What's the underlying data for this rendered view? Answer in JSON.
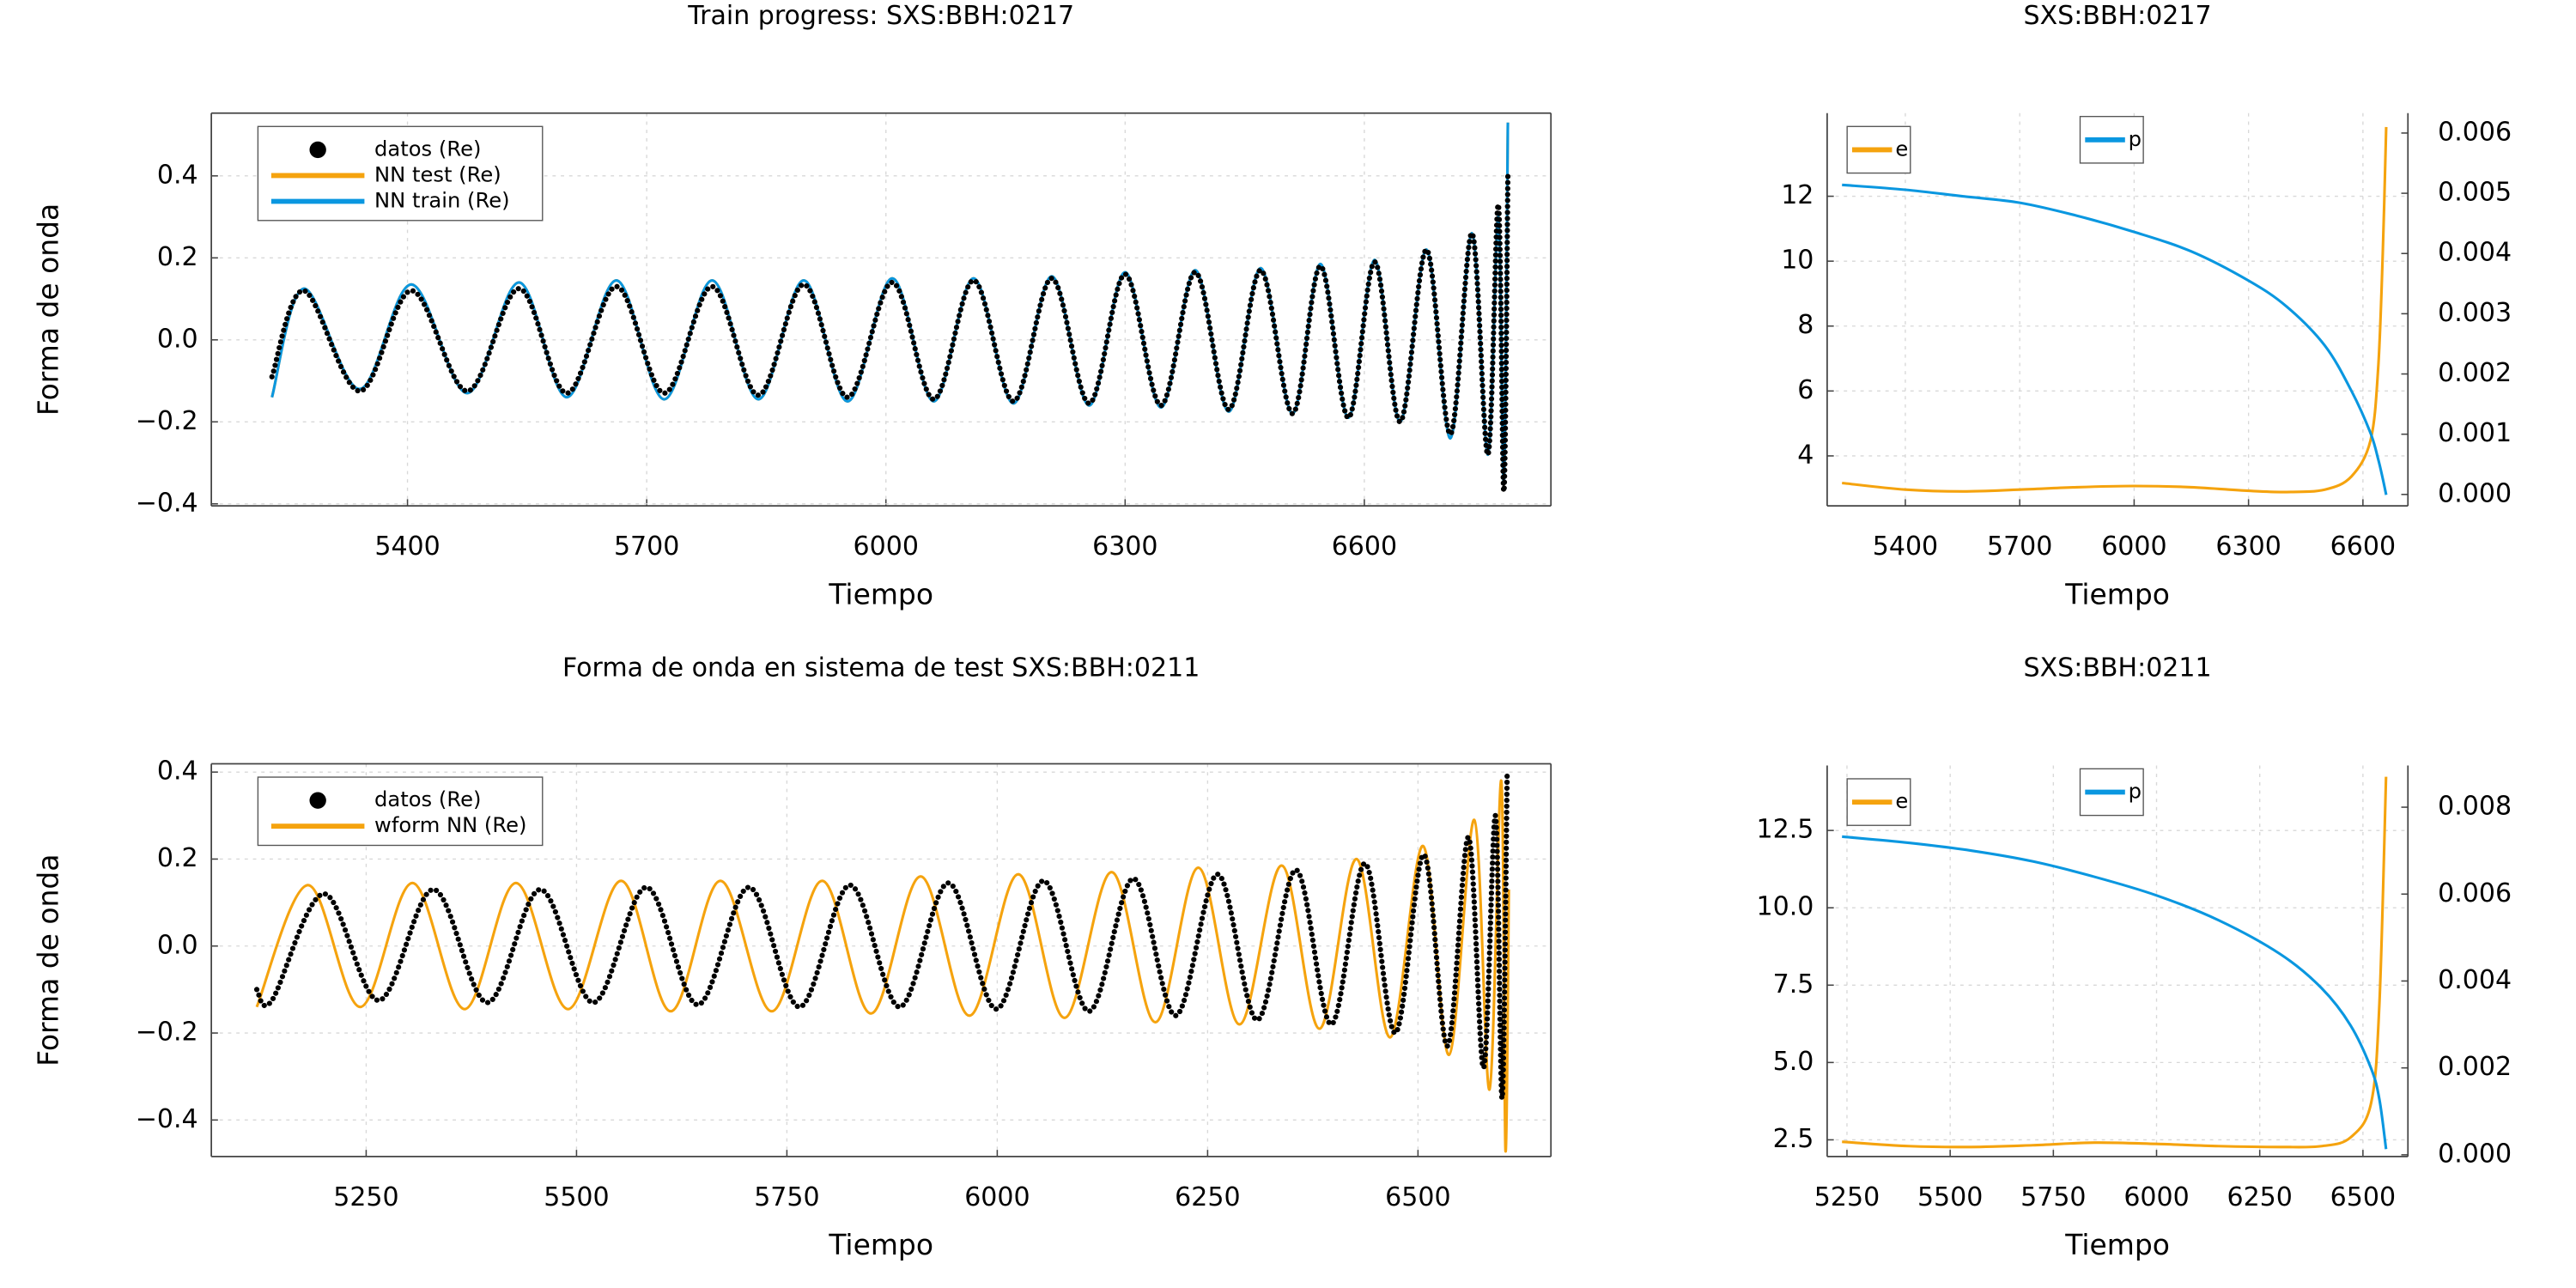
{
  "chart_data": [
    {
      "type": "line",
      "title": "Train progress: SXS:BBH:0217",
      "xlabel": "Tiempo",
      "ylabel": "Forma de onda",
      "x": [
        5230,
        5270,
        5340,
        5405,
        5475,
        5540,
        5600,
        5662,
        5722,
        5782,
        5840,
        5897,
        5952,
        6008,
        6060,
        6110,
        6160,
        6208,
        6255,
        6300,
        6345,
        6388,
        6430,
        6470,
        6510,
        6545,
        6580,
        6613,
        6645,
        6678,
        6708,
        6735,
        6755,
        6768,
        6775,
        6780
      ],
      "series": [
        {
          "name": "datos (Re)",
          "color": "#000000",
          "marker": "circle",
          "values": [
            -0.09,
            0.12,
            -0.125,
            0.12,
            -0.125,
            0.125,
            -0.13,
            0.13,
            -0.13,
            0.13,
            -0.135,
            0.135,
            -0.14,
            0.14,
            -0.145,
            0.145,
            -0.15,
            0.15,
            -0.155,
            0.16,
            -0.16,
            0.165,
            -0.17,
            0.17,
            -0.18,
            0.18,
            -0.19,
            0.19,
            -0.2,
            0.22,
            -0.23,
            0.26,
            -0.28,
            0.33,
            -0.37,
            0.4
          ]
        },
        {
          "name": "NN test (Re)",
          "color": "#f5a30e",
          "values": [
            -0.14,
            0.125,
            -0.12,
            0.135,
            -0.13,
            0.14,
            -0.14,
            0.145,
            -0.145,
            0.145,
            -0.145,
            0.145,
            -0.15,
            0.15,
            -0.15,
            0.15,
            -0.155,
            0.155,
            -0.16,
            0.165,
            -0.165,
            0.17,
            -0.175,
            0.175,
            -0.18,
            0.185,
            -0.19,
            0.195,
            -0.2,
            0.22,
            -0.24,
            0.26,
            -0.28,
            0.3,
            -0.35,
            0.53
          ]
        },
        {
          "name": "NN train (Re)",
          "color": "#0a97e0",
          "values": [
            -0.14,
            0.125,
            -0.12,
            0.135,
            -0.13,
            0.14,
            -0.14,
            0.145,
            -0.145,
            0.145,
            -0.145,
            0.145,
            -0.15,
            0.15,
            -0.15,
            0.15,
            -0.155,
            0.155,
            -0.16,
            0.165,
            -0.165,
            0.17,
            -0.175,
            0.175,
            -0.18,
            0.185,
            -0.19,
            0.195,
            -0.2,
            0.22,
            -0.24,
            0.26,
            -0.28,
            0.3,
            -0.35,
            0.53
          ]
        }
      ],
      "xlim": [
        5154,
        6834
      ],
      "xticks": [
        5400,
        5700,
        6000,
        6300,
        6600
      ],
      "ylim": [
        -0.405,
        0.553
      ],
      "yticks": [
        {
          "value": -0.4,
          "label": "−0.4"
        },
        {
          "value": -0.2,
          "label": "−0.2"
        },
        {
          "value": 0,
          "label": "0.0"
        },
        0.2,
        0.4
      ],
      "grid": true,
      "legend": "top-left"
    },
    {
      "type": "line",
      "title": "SXS:BBH:0217",
      "xlabel": "Tiempo",
      "x": [
        5234,
        5400,
        5550,
        5700,
        5850,
        6000,
        6150,
        6300,
        6400,
        6500,
        6570,
        6620,
        6640,
        6652,
        6661
      ],
      "series": [
        {
          "name": "e",
          "color": "#f5a30e",
          "axis": "y2",
          "legend": "top-left",
          "values": [
            0.00019,
            8e-05,
            5e-05,
            8e-05,
            0.00012,
            0.00014,
            0.00012,
            6e-05,
            4e-05,
            8e-05,
            0.0003,
            0.0009,
            0.0021,
            0.004,
            0.0061
          ]
        },
        {
          "name": "p",
          "color": "#0a97e0",
          "legend": "top",
          "values": [
            12.35,
            12.2,
            12.0,
            11.8,
            11.4,
            10.9,
            10.3,
            9.4,
            8.6,
            7.4,
            6.0,
            4.7,
            3.9,
            3.3,
            2.8
          ]
        }
      ],
      "xlim": [
        5195,
        6718
      ],
      "xticks": [
        5400,
        5700,
        6000,
        6300,
        6600
      ],
      "ylim": [
        2.46,
        14.56
      ],
      "yticks": [
        4,
        6,
        8,
        10,
        12
      ],
      "y2lim": [
        -0.00019,
        0.00633
      ],
      "y2ticks": [
        {
          "value": 0,
          "label": "0.000"
        },
        {
          "value": 0.001,
          "label": "0.001"
        },
        {
          "value": 0.002,
          "label": "0.002"
        },
        {
          "value": 0.003,
          "label": "0.003"
        },
        {
          "value": 0.004,
          "label": "0.004"
        },
        {
          "value": 0.005,
          "label": "0.005"
        },
        {
          "value": 0.006,
          "label": "0.006"
        }
      ],
      "grid": true
    },
    {
      "type": "line",
      "title": "Forma de onda en sistema de test SXS:BBH:0211",
      "xlabel": "Tiempo",
      "ylabel": "Forma de onda",
      "series": [
        {
          "name": "datos (Re)",
          "color": "#000000",
          "marker": "circle",
          "x": [
            5120,
            5138,
            5200,
            5265,
            5330,
            5394,
            5457,
            5520,
            5583,
            5644,
            5705,
            5765,
            5825,
            5884,
            5942,
            5999,
            6055,
            6109,
            6162,
            6212,
            6262,
            6309,
            6355,
            6397,
            6437,
            6473,
            6507,
            6535,
            6560,
            6578,
            6592,
            6600,
            6606
          ],
          "values": [
            -0.1,
            -0.125,
            0.12,
            -0.125,
            0.13,
            -0.13,
            0.13,
            -0.13,
            0.135,
            -0.135,
            0.135,
            -0.14,
            0.14,
            -0.14,
            0.145,
            -0.145,
            0.15,
            -0.15,
            0.155,
            -0.16,
            0.165,
            -0.17,
            0.175,
            -0.18,
            0.19,
            -0.2,
            0.21,
            -0.23,
            0.25,
            -0.28,
            0.3,
            -0.35,
            0.4
          ]
        },
        {
          "name": "wform NN (Re)",
          "color": "#f5a30e",
          "x": [
            5120,
            5181,
            5243,
            5305,
            5367,
            5428,
            5490,
            5553,
            5612,
            5671,
            5732,
            5792,
            5850,
            5909,
            5967,
            6025,
            6080,
            6136,
            6188,
            6239,
            6288,
            6338,
            6383,
            6427,
            6467,
            6506,
            6537,
            6567,
            6585,
            6599,
            6604,
            6608
          ],
          "values": [
            -0.14,
            0.14,
            -0.14,
            0.145,
            -0.145,
            0.145,
            -0.145,
            0.15,
            -0.15,
            0.15,
            -0.15,
            0.15,
            -0.155,
            0.16,
            -0.16,
            0.165,
            -0.165,
            0.17,
            -0.175,
            0.18,
            -0.18,
            0.185,
            -0.19,
            0.2,
            -0.21,
            0.23,
            -0.25,
            0.29,
            -0.33,
            0.38,
            -0.47,
            0.13
          ]
        }
      ],
      "xlim": [
        5066,
        6658
      ],
      "xticks": [
        5250,
        5500,
        5750,
        6000,
        6250,
        6500
      ],
      "ylim": [
        -0.484,
        0.419
      ],
      "yticks": [
        {
          "value": -0.4,
          "label": "−0.4"
        },
        {
          "value": -0.2,
          "label": "−0.2"
        },
        {
          "value": 0,
          "label": "0.0"
        },
        0.2,
        0.4
      ],
      "grid": true,
      "legend": "top-left"
    },
    {
      "type": "line",
      "title": "SXS:BBH:0211",
      "xlabel": "Tiempo",
      "x": [
        5238,
        5400,
        5550,
        5700,
        5850,
        6000,
        6150,
        6300,
        6400,
        6470,
        6520,
        6540,
        6556
      ],
      "series": [
        {
          "name": "e",
          "color": "#f5a30e",
          "axis": "y2",
          "legend": "top-left",
          "values": [
            0.0003,
            0.0002,
            0.00018,
            0.00022,
            0.00028,
            0.00025,
            0.0002,
            0.00018,
            0.0002,
            0.0004,
            0.0012,
            0.0035,
            0.0087
          ]
        },
        {
          "name": "p",
          "color": "#0a97e0",
          "legend": "top",
          "values": [
            12.3,
            12.1,
            11.85,
            11.5,
            11.0,
            10.4,
            9.6,
            8.5,
            7.4,
            6.2,
            4.8,
            3.8,
            2.2
          ]
        }
      ],
      "xlim": [
        5202,
        6609
      ],
      "xticks": [
        5250,
        5500,
        5750,
        6000,
        6250,
        6500
      ],
      "ylim": [
        1.96,
        14.6
      ],
      "yticks": [
        2.5,
        {
          "value": 5,
          "label": "5.0"
        },
        7.5,
        {
          "value": 10,
          "label": "10.0"
        },
        12.5
      ],
      "y2lim": [
        -4e-05,
        0.00896
      ],
      "y2ticks": [
        {
          "value": 0,
          "label": "0.000"
        },
        {
          "value": 0.002,
          "label": "0.002"
        },
        {
          "value": 0.004,
          "label": "0.004"
        },
        {
          "value": 0.006,
          "label": "0.006"
        },
        {
          "value": 0.008,
          "label": "0.008"
        }
      ],
      "grid": true
    }
  ]
}
